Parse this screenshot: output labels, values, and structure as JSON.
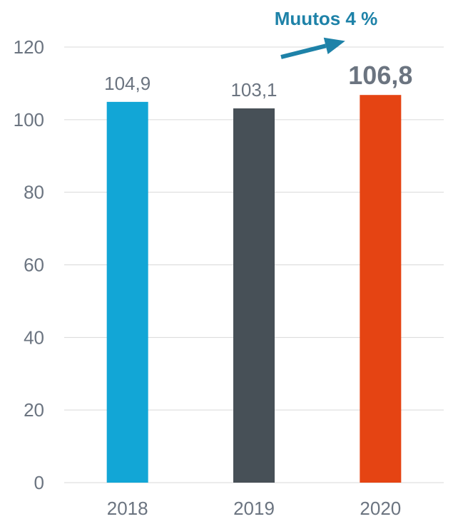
{
  "chart_data": {
    "type": "bar",
    "categories": [
      "2018",
      "2019",
      "2020"
    ],
    "values": [
      104.9,
      103.1,
      106.8
    ],
    "value_labels": [
      "104,9",
      "103,1",
      "106,8"
    ],
    "emphasized_index": 2,
    "colors": [
      "#12a6d6",
      "#475057",
      "#e54413"
    ],
    "ylim": [
      0,
      120
    ],
    "y_ticks": [
      0,
      20,
      40,
      60,
      80,
      100,
      120
    ],
    "grid": true,
    "annotation": {
      "text": "Muutos 4 %",
      "color": "#1e82a8"
    },
    "title": "",
    "xlabel": "",
    "ylabel": ""
  }
}
